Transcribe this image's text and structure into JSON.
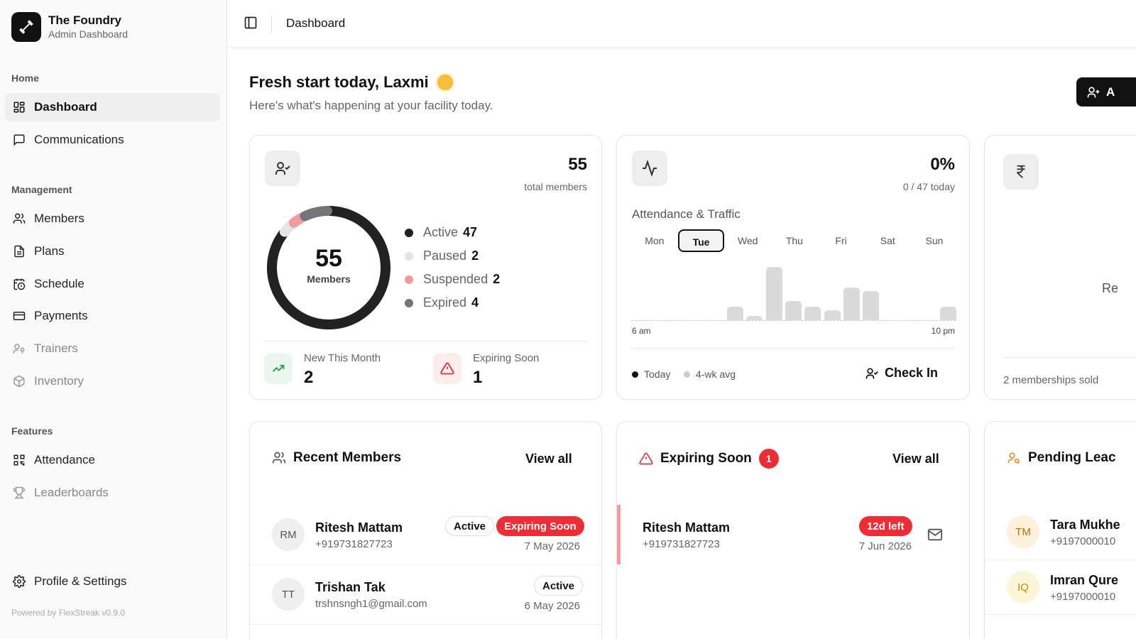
{
  "brand": {
    "name": "The Foundry",
    "subtitle": "Admin Dashboard"
  },
  "sidebar": {
    "sections": {
      "home": "Home",
      "management": "Management",
      "features": "Features"
    },
    "items": {
      "dashboard": "Dashboard",
      "communications": "Communications",
      "members": "Members",
      "plans": "Plans",
      "schedule": "Schedule",
      "payments": "Payments",
      "trainers": "Trainers",
      "inventory": "Inventory",
      "attendance": "Attendance",
      "leaderboards": "Leaderboards",
      "profile": "Profile & Settings"
    },
    "powered_by": "Powered by FlexStreak v0.9.0"
  },
  "topbar": {
    "breadcrumb": "Dashboard"
  },
  "greeting": {
    "title": "Fresh start today, Laxmi",
    "subtitle": "Here's what's happening at your facility today.",
    "add_button_label": "A"
  },
  "members_card": {
    "total": "55",
    "total_label": "total members",
    "donut_value": "55",
    "donut_label": "Members",
    "legend": [
      {
        "label": "Active",
        "value": "47",
        "color": "#222222"
      },
      {
        "label": "Paused",
        "value": "2",
        "color": "#e4e4e4"
      },
      {
        "label": "Suspended",
        "value": "2",
        "color": "#f29a9d"
      },
      {
        "label": "Expired",
        "value": "4",
        "color": "#75747a"
      }
    ],
    "new_label": "New This Month",
    "new_value": "2",
    "expiring_label": "Expiring Soon",
    "expiring_value": "1"
  },
  "attendance_card": {
    "percent": "0%",
    "today_text": "0 / 47 today",
    "title": "Attendance & Traffic",
    "days": [
      "Mon",
      "Tue",
      "Wed",
      "Thu",
      "Fri",
      "Sat",
      "Sun"
    ],
    "selected_day": "Tue",
    "axis_start": "6 am",
    "axis_end": "10 pm",
    "bar_levels": [
      0.25,
      0.08,
      1.0,
      0.36,
      0.25,
      0.19,
      0.62,
      0.55,
      0,
      0,
      0,
      0.25
    ],
    "legend_today": "Today",
    "legend_avg": "4-wk avg",
    "checkin_label": "Check In"
  },
  "revenue_card": {
    "partial_text": "Re",
    "footer": "2 memberships sold"
  },
  "recent_members": {
    "title": "Recent Members",
    "view_all": "View all",
    "rows": [
      {
        "initials": "RM",
        "name": "Ritesh Mattam",
        "contact": "+919731827723",
        "status": "Active",
        "flag": "Expiring Soon",
        "date": "7 May 2026"
      },
      {
        "initials": "TT",
        "name": "Trishan Tak",
        "contact": "trshnsngh1@gmail.com",
        "status": "Active",
        "date": "6 May 2026"
      }
    ]
  },
  "expiring_soon": {
    "title": "Expiring Soon",
    "count": "1",
    "view_all": "View all",
    "rows": [
      {
        "name": "Ritesh Mattam",
        "contact": "+919731827723",
        "left": "12d left",
        "date": "7 Jun 2026"
      }
    ]
  },
  "pending_leads": {
    "title": "Pending Leac",
    "rows": [
      {
        "initials": "TM",
        "name": "Tara Mukhe",
        "contact": "+9197000010"
      },
      {
        "initials": "IQ",
        "name": "Imran Qure",
        "contact": "+9197000010"
      }
    ]
  }
}
